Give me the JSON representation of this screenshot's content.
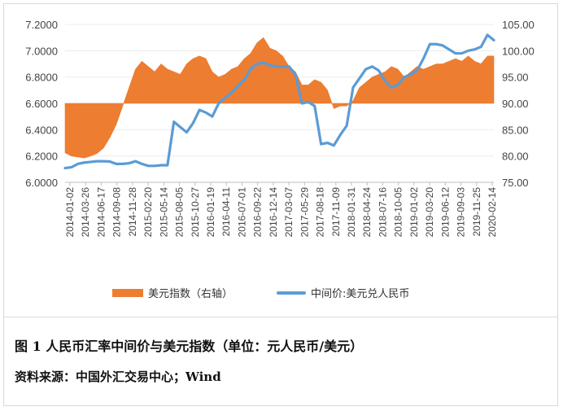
{
  "chart_data": {
    "type": "area+line",
    "x_tick_labels": [
      "2014-01-02",
      "2014-03-26",
      "2014-06-17",
      "2014-09-08",
      "2014-11-28",
      "2015-02-20",
      "2015-05-14",
      "2015-08-05",
      "2015-10-27",
      "2016-01-19",
      "2016-04-11",
      "2016-07-01",
      "2016-09-22",
      "2016-12-14",
      "2017-03-07",
      "2017-05-29",
      "2017-08-18",
      "2017-11-09",
      "2018-01-31",
      "2018-04-24",
      "2018-07-16",
      "2018-10-05",
      "2019-01-02",
      "2019-03-20",
      "2019-06-12",
      "2019-09-03",
      "2019-11-25",
      "2020-02-14"
    ],
    "left_axis": {
      "ylim": [
        6.0,
        7.2
      ],
      "ticks": [
        "6.0000",
        "6.2000",
        "6.4000",
        "6.6000",
        "6.8000",
        "7.0000",
        "7.2000"
      ]
    },
    "right_axis": {
      "ylim": [
        75,
        105
      ],
      "ticks": [
        "75.00",
        "80.00",
        "85.00",
        "90.00",
        "95.00",
        "100.00",
        "105.00"
      ],
      "baseline": 90
    },
    "series": [
      {
        "name": "美元指数（右轴）",
        "axis": "right",
        "color": "#ED7D31",
        "values": [
          80.6,
          80.0,
          79.8,
          79.6,
          80.0,
          80.5,
          81.5,
          83.5,
          86.0,
          89.5,
          93.0,
          96.5,
          98.0,
          97.0,
          96.0,
          97.5,
          96.5,
          96.0,
          95.5,
          97.5,
          98.5,
          99.0,
          98.5,
          96.0,
          95.0,
          95.5,
          96.5,
          97.0,
          98.5,
          99.5,
          101.5,
          102.5,
          100.5,
          100.0,
          99.0,
          97.0,
          96.0,
          93.5,
          93.5,
          94.5,
          94.0,
          92.5,
          89.0,
          89.5,
          89.5,
          90.5,
          93.0,
          94.0,
          95.0,
          95.5,
          96.0,
          97.0,
          96.5,
          95.0,
          96.0,
          97.0,
          96.5,
          97.0,
          97.5,
          97.5,
          98.0,
          98.5,
          98.0,
          99.0,
          98.0,
          97.5,
          99.0,
          99.0
        ]
      },
      {
        "name": "中间价:美元兑人民币",
        "axis": "left",
        "color": "#5B9BD5",
        "values": [
          6.108,
          6.115,
          6.14,
          6.15,
          6.155,
          6.16,
          6.16,
          6.158,
          6.14,
          6.14,
          6.145,
          6.16,
          6.14,
          6.125,
          6.125,
          6.13,
          6.13,
          6.46,
          6.42,
          6.38,
          6.45,
          6.55,
          6.53,
          6.5,
          6.6,
          6.64,
          6.68,
          6.73,
          6.78,
          6.86,
          6.9,
          6.91,
          6.89,
          6.88,
          6.88,
          6.88,
          6.82,
          6.6,
          6.61,
          6.58,
          6.29,
          6.3,
          6.28,
          6.36,
          6.43,
          6.72,
          6.79,
          6.86,
          6.88,
          6.85,
          6.77,
          6.72,
          6.74,
          6.8,
          6.82,
          6.85,
          6.94,
          7.05,
          7.05,
          7.04,
          7.01,
          6.98,
          6.98,
          7.0,
          7.01,
          7.03,
          7.12,
          7.08
        ]
      }
    ],
    "legend_position": "bottom"
  },
  "legend": {
    "area_label": "美元指数（右轴）",
    "line_label": "中间价:美元兑人民币"
  },
  "caption": {
    "title": "图 1   人民币汇率中间价与美元指数（单位：元人民币/美元）",
    "source": "资料来源：中国外汇交易中心；Wind"
  }
}
